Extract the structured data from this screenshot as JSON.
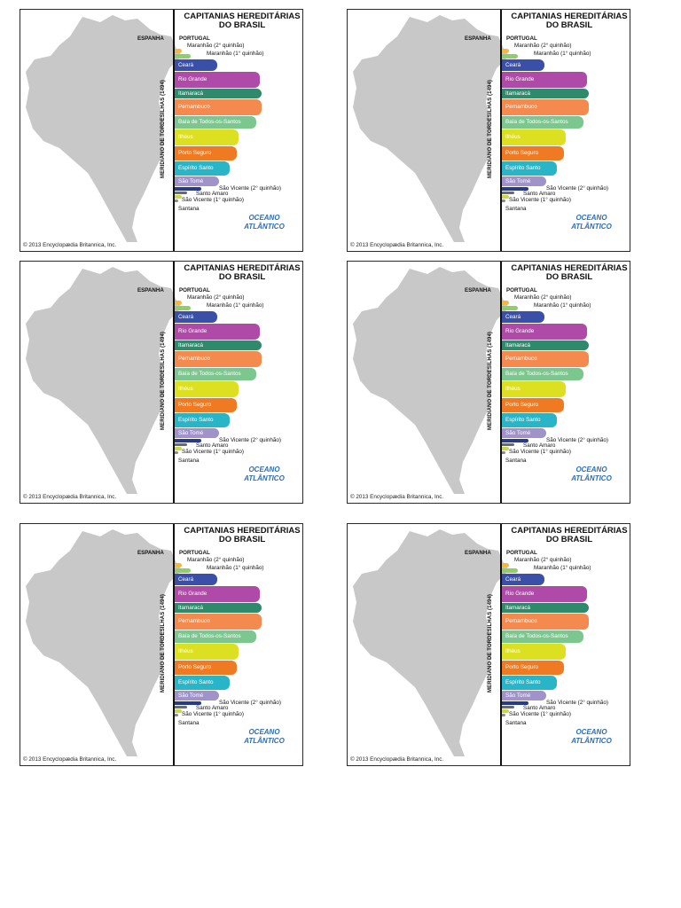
{
  "map": {
    "title_line1": "CAPITANIAS HEREDITÁRIAS",
    "title_line2": "DO BRASIL",
    "left_side": "ESPANHA",
    "right_side": "PORTUGAL",
    "meridian": "MERIDIANO DE TORDESILHAS (1494)",
    "ocean_line1": "OCEANO",
    "ocean_line2": "ATLÂNTICO",
    "copyright": "© 2013 Encyclopædia Britannica, Inc.",
    "land_color": "#c8c8c8",
    "captaincies": [
      {
        "name": "Maranhão (2° quinhão)",
        "color": "#f2b93b",
        "label_inside": false
      },
      {
        "name": "Maranhão (1° quinhão)",
        "color": "#8fce6a",
        "label_inside": false
      },
      {
        "name": "Ceará",
        "color": "#3a4fa8",
        "label_inside": true
      },
      {
        "name": "Rio Grande",
        "color": "#b04aa8",
        "label_inside": true
      },
      {
        "name": "Itamaracá",
        "color": "#2e8a6a",
        "label_inside": true
      },
      {
        "name": "Pernambuco",
        "color": "#f58a4e",
        "label_inside": true
      },
      {
        "name": "Baía de Todos-os-Santos",
        "color": "#7cc78e",
        "label_inside": true
      },
      {
        "name": "Ilhéus",
        "color": "#dde020",
        "label_inside": true
      },
      {
        "name": "Porto Seguro",
        "color": "#f07a22",
        "label_inside": true
      },
      {
        "name": "Espírito Santo",
        "color": "#29b5c8",
        "label_inside": true
      },
      {
        "name": "São Tomé",
        "color": "#9f93c9",
        "label_inside": true
      },
      {
        "name": "São Vicente (2° quinhão)",
        "color": "#283a8c",
        "label_inside": false
      },
      {
        "name": "Santo Amaro",
        "color": "#6a6a6a",
        "label_inside": false
      },
      {
        "name": "São Vicente (1° quinhão)",
        "color": "#c7d94a",
        "label_inside": false
      },
      {
        "name": "Santana",
        "color": "#8b8b8b",
        "label_inside": false
      }
    ]
  },
  "cards": [
    {
      "id": "map-1"
    },
    {
      "id": "map-2"
    },
    {
      "id": "map-3"
    },
    {
      "id": "map-4"
    },
    {
      "id": "map-5"
    },
    {
      "id": "map-6"
    }
  ]
}
